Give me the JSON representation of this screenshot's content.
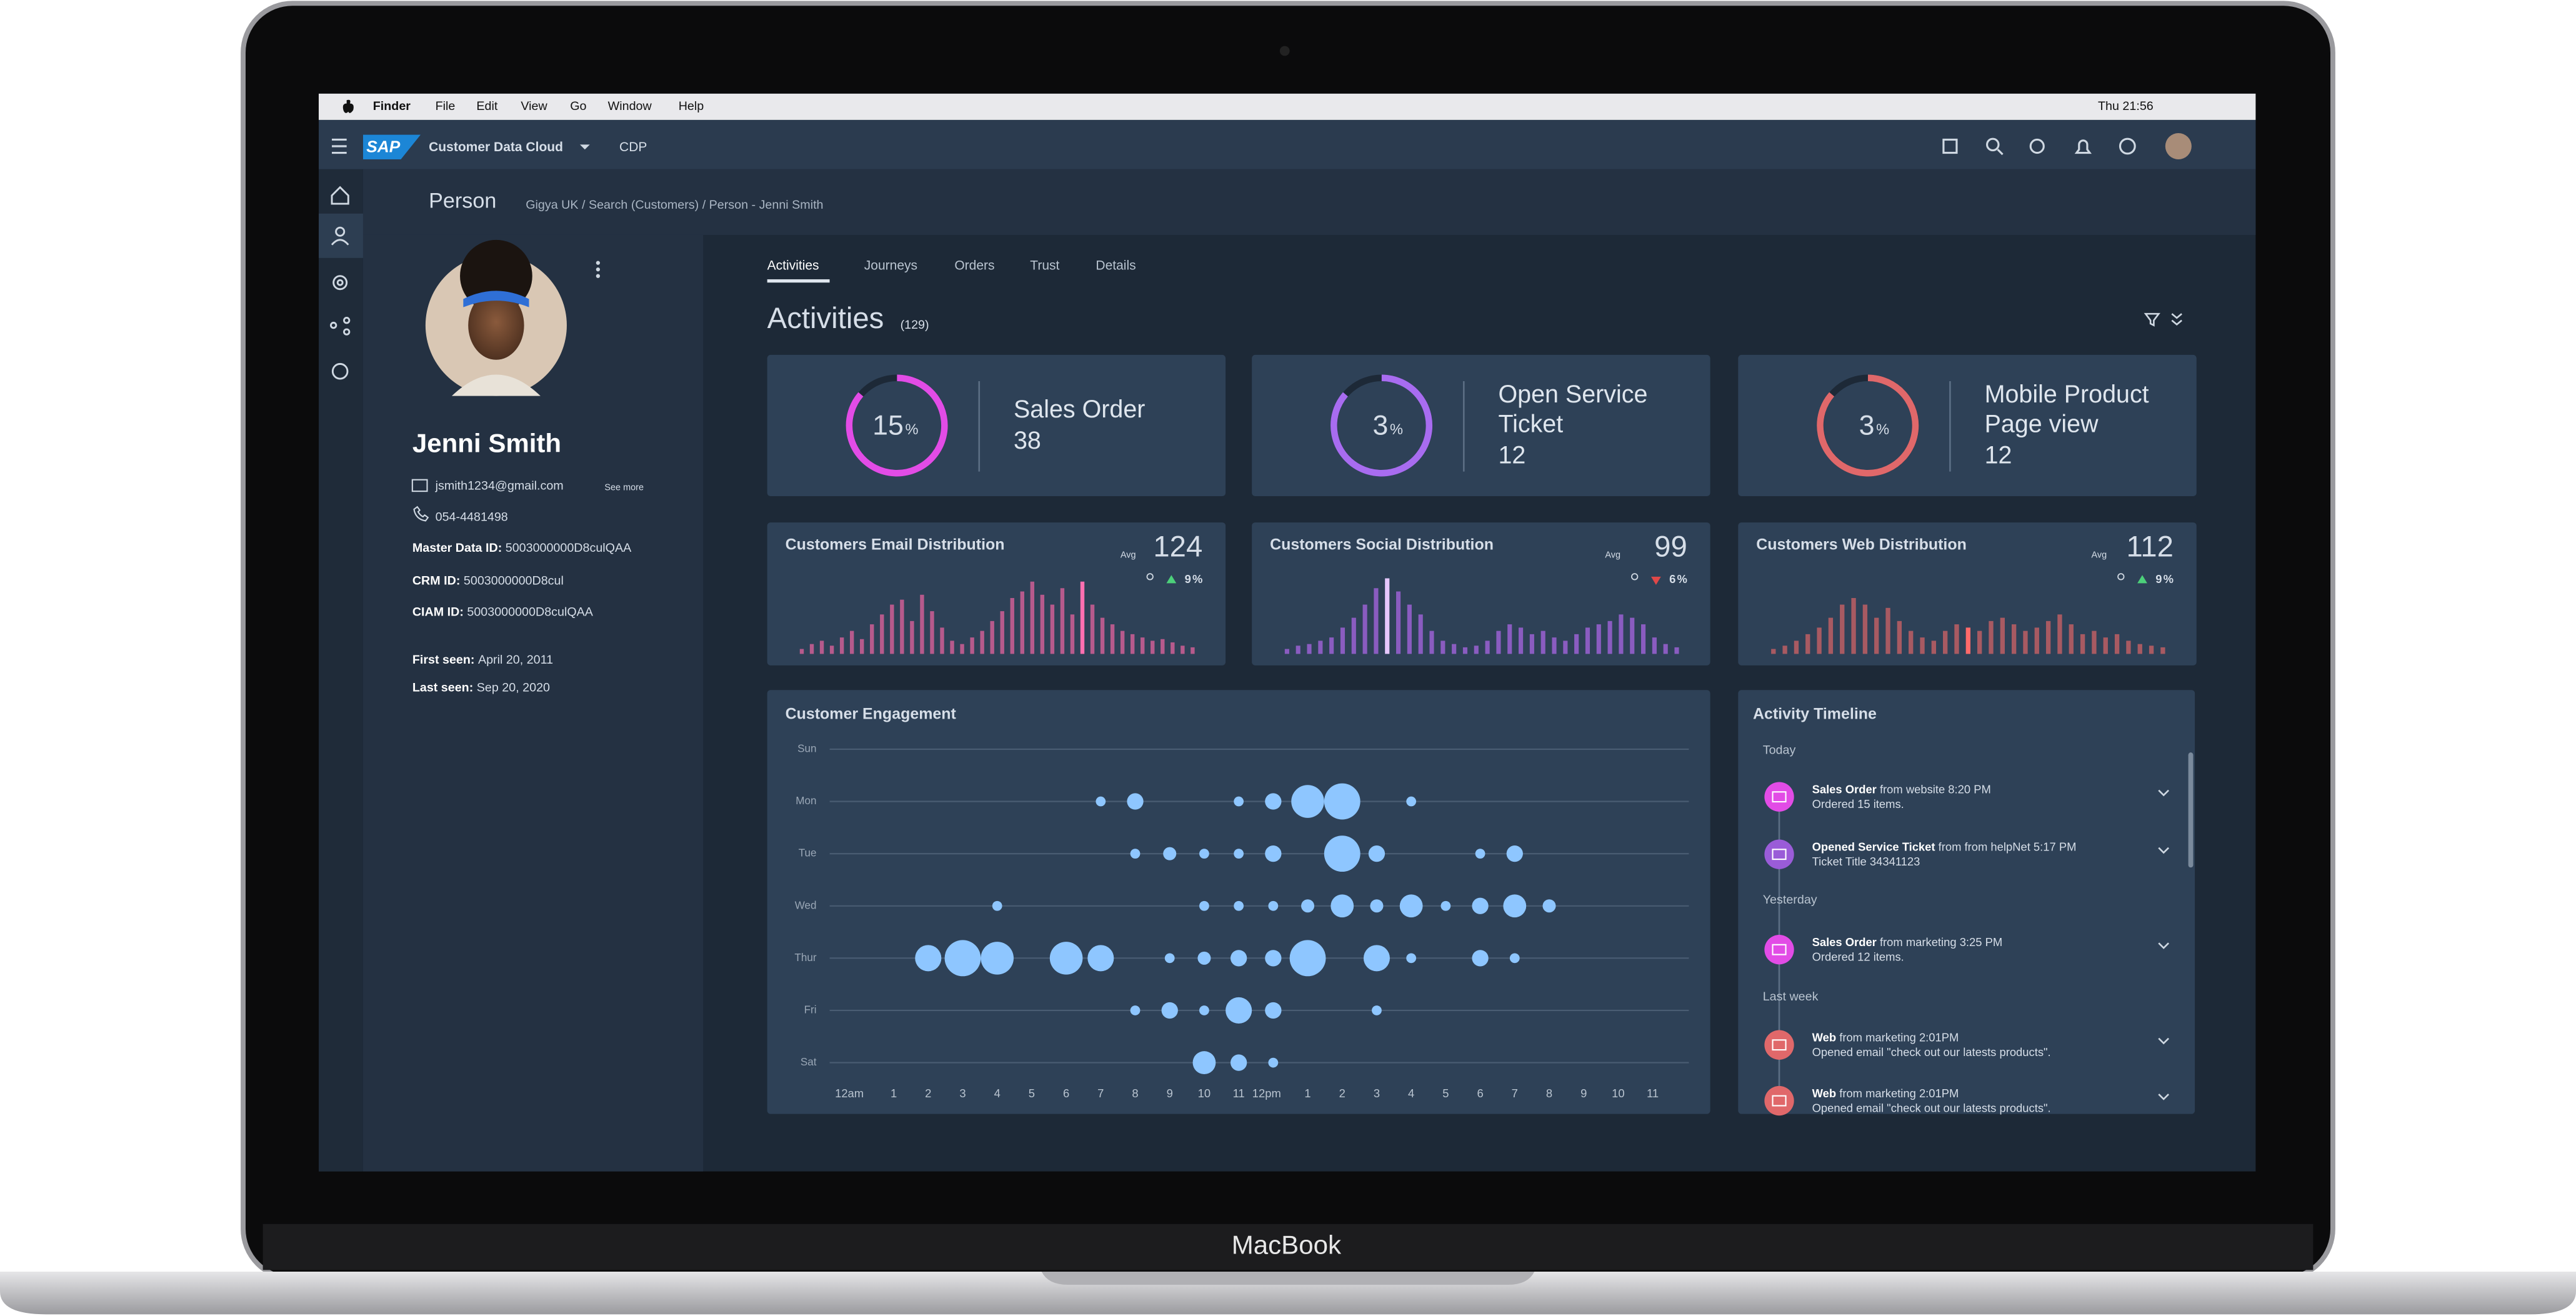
{
  "menubar": {
    "items": [
      "Finder",
      "File",
      "Edit",
      "View",
      "Go",
      "Window",
      "Help"
    ],
    "clock": "Thu 21:56"
  },
  "shell": {
    "logo": "SAP",
    "product": "Customer Data Cloud",
    "section": "CDP"
  },
  "page": {
    "title": "Person",
    "breadcrumb": "Gigya UK / Search (Customers) / Person - Jenni Smith"
  },
  "profile": {
    "name": "Jenni Smith",
    "email": "jsmith1234@gmail.com",
    "see_more": "See more",
    "phone": "054-4481498",
    "fields": [
      {
        "label": "Master Data ID:",
        "value": "5003000000D8culQAA"
      },
      {
        "label": "CRM ID:",
        "value": "5003000000D8cul"
      },
      {
        "label": "CIAM ID:",
        "value": "5003000000D8culQAA"
      },
      {
        "label": "First seen:",
        "value": "April 20, 2011"
      },
      {
        "label": "Last seen:",
        "value": "Sep 20, 2020"
      }
    ]
  },
  "tabs": [
    "Activities",
    "Journeys",
    "Orders",
    "Trust",
    "Details"
  ],
  "section": {
    "title": "Activities",
    "count": "(129)"
  },
  "kpis": [
    {
      "percent": 15,
      "unit": "%",
      "label": "Sales Order",
      "value": 38,
      "color": "#e24ce6"
    },
    {
      "percent": 3,
      "unit": "%",
      "label": "Open Service Ticket",
      "value": 12,
      "color": "#a86cf0"
    },
    {
      "percent": 3,
      "unit": "%",
      "label": "Mobile Product Page view",
      "value": 12,
      "color": "#e0686a"
    }
  ],
  "distributions": [
    {
      "title": "Customers Email Distribution",
      "avg_label": "Avg",
      "avg": 124,
      "change": 9,
      "unit": "%",
      "trend": "up",
      "color": "#b65a8c",
      "highlight_color": "#ff6fb0",
      "highlight": 28,
      "bars": [
        3,
        6,
        8,
        5,
        10,
        14,
        9,
        18,
        24,
        30,
        33,
        20,
        36,
        26,
        16,
        8,
        6,
        10,
        14,
        20,
        26,
        34,
        38,
        44,
        36,
        30,
        40,
        24,
        44,
        30,
        22,
        18,
        14,
        12,
        10,
        8,
        9,
        7,
        5,
        4
      ]
    },
    {
      "title": "Customers Social Distribution",
      "avg_label": "Avg",
      "avg": 99,
      "change": 6,
      "unit": "%",
      "trend": "down",
      "color": "#8a5cc0",
      "highlight_color": "#e6c8ff",
      "highlight": 9,
      "bars": [
        3,
        5,
        6,
        8,
        10,
        16,
        22,
        30,
        40,
        46,
        38,
        30,
        24,
        14,
        8,
        6,
        4,
        5,
        8,
        14,
        18,
        16,
        12,
        14,
        10,
        8,
        12,
        16,
        18,
        20,
        24,
        22,
        18,
        10,
        6,
        4
      ]
    },
    {
      "title": "Customers Web Distribution",
      "avg_label": "Avg",
      "avg": 112,
      "change": 9,
      "unit": "%",
      "trend": "up",
      "color": "#a85a62",
      "highlight_color": "#ff6a6a",
      "highlight": 17,
      "bars": [
        3,
        5,
        8,
        12,
        16,
        22,
        30,
        34,
        30,
        22,
        28,
        20,
        14,
        10,
        8,
        14,
        18,
        16,
        14,
        20,
        22,
        18,
        14,
        16,
        20,
        24,
        18,
        12,
        14,
        10,
        12,
        8,
        6,
        5,
        4
      ]
    }
  ],
  "engagement": {
    "title": "Customer Engagement",
    "days": [
      "Sun",
      "Mon",
      "Tue",
      "Wed",
      "Thur",
      "Fri",
      "Sat"
    ],
    "hours": [
      "12am",
      "1",
      "2",
      "3",
      "4",
      "5",
      "6",
      "7",
      "8",
      "9",
      "10",
      "11",
      "12pm",
      "1",
      "2",
      "3",
      "4",
      "5",
      "6",
      "7",
      "8",
      "9",
      "10",
      "11"
    ],
    "points": [
      [],
      [
        [
          7,
          3
        ],
        [
          8,
          5
        ],
        [
          11,
          3
        ],
        [
          12,
          5
        ],
        [
          13,
          10
        ],
        [
          14,
          11
        ],
        [
          16,
          3
        ]
      ],
      [
        [
          8,
          3
        ],
        [
          9,
          4
        ],
        [
          10,
          3
        ],
        [
          11,
          3
        ],
        [
          12,
          5
        ],
        [
          14,
          11
        ],
        [
          15,
          5
        ],
        [
          18,
          3
        ],
        [
          19,
          5
        ]
      ],
      [
        [
          4,
          3
        ],
        [
          10,
          3
        ],
        [
          11,
          3
        ],
        [
          12,
          3
        ],
        [
          13,
          4
        ],
        [
          14,
          7
        ],
        [
          15,
          4
        ],
        [
          16,
          7
        ],
        [
          17,
          3
        ],
        [
          18,
          5
        ],
        [
          19,
          7
        ],
        [
          20,
          4
        ]
      ],
      [
        [
          2,
          8
        ],
        [
          3,
          11
        ],
        [
          4,
          10
        ],
        [
          6,
          10
        ],
        [
          7,
          8
        ],
        [
          9,
          3
        ],
        [
          10,
          4
        ],
        [
          11,
          5
        ],
        [
          12,
          5
        ],
        [
          13,
          11
        ],
        [
          15,
          8
        ],
        [
          16,
          3
        ],
        [
          18,
          5
        ],
        [
          19,
          3
        ]
      ],
      [
        [
          8,
          3
        ],
        [
          9,
          5
        ],
        [
          10,
          3
        ],
        [
          11,
          8
        ],
        [
          12,
          5
        ],
        [
          15,
          3
        ]
      ],
      [
        [
          10,
          7
        ],
        [
          11,
          5
        ],
        [
          12,
          3
        ]
      ]
    ]
  },
  "timeline": {
    "title": "Activity Timeline",
    "groups": [
      {
        "label": "Today",
        "items": [
          {
            "title": "Sales Order",
            "meta": "from website 8:20 PM",
            "detail": "Ordered 15 items.",
            "color": "#e24ce6"
          },
          {
            "title": "Opened Service Ticket",
            "meta": "from from helpNet 5:17 PM",
            "detail": "Ticket Title 34341123",
            "color": "#9a5cd8"
          }
        ]
      },
      {
        "label": "Yesterday",
        "items": [
          {
            "title": "Sales Order",
            "meta": "from marketing 3:25 PM",
            "detail": "Ordered 12 items.",
            "color": "#e24ce6"
          }
        ]
      },
      {
        "label": "Last week",
        "items": [
          {
            "title": "Web",
            "meta": "from marketing 2:01PM",
            "detail": "Opened email \"check out our latests products\".",
            "color": "#e0686a"
          },
          {
            "title": "Web",
            "meta": "from marketing 2:01PM",
            "detail": "Opened email \"check out our latests products\".",
            "color": "#e0686a"
          }
        ]
      }
    ]
  },
  "device": {
    "label": "MacBook"
  }
}
